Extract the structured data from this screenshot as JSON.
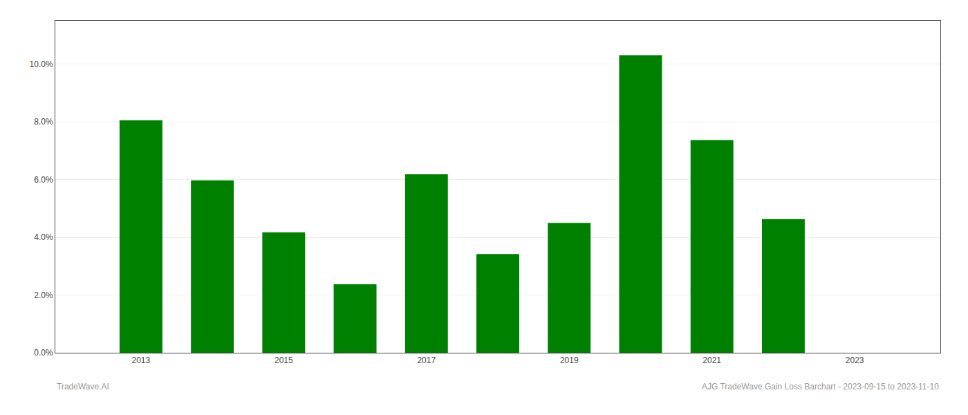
{
  "chart_data": {
    "type": "bar",
    "x": [
      2013,
      2014,
      2015,
      2016,
      2017,
      2018,
      2019,
      2020,
      2021,
      2022
    ],
    "values": [
      0.0805,
      0.0597,
      0.0417,
      0.0237,
      0.0618,
      0.0342,
      0.045,
      0.103,
      0.0737,
      0.0463
    ],
    "color": "#008000",
    "xlim": [
      2011.8,
      2024.2
    ],
    "xticks": [
      2013,
      2015,
      2017,
      2019,
      2021,
      2023
    ],
    "ylim": [
      0,
      0.115
    ],
    "yticks": [
      {
        "value": 0.0,
        "label": "0.0%"
      },
      {
        "value": 0.02,
        "label": "2.0%"
      },
      {
        "value": 0.04,
        "label": "4.0%"
      },
      {
        "value": 0.06,
        "label": "6.0%"
      },
      {
        "value": 0.08,
        "label": "8.0%"
      },
      {
        "value": 0.1,
        "label": "10.0%"
      }
    ],
    "grid": true,
    "annotations": [
      "TradeWave.AI",
      "AJG TradeWave Gain Loss Barchart - 2023-09-15 to 2023-11-10"
    ]
  }
}
